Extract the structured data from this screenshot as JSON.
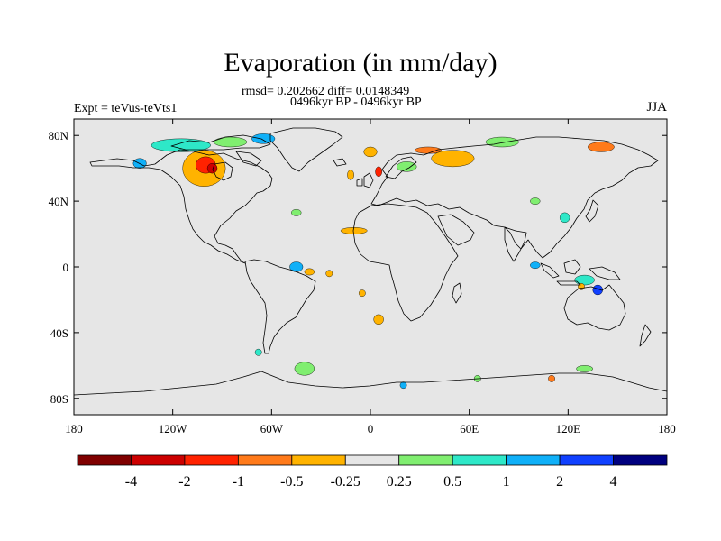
{
  "title": "Evaporation (in mm/day)",
  "stats_line": "rmsd= 0.202662 diff= 0.0148349",
  "period_line": "0496kyr BP - 0496kyr BP",
  "experiment": "Expt = teVus-teVts1",
  "season": "JJA",
  "map": {
    "projection": "cylindrical-equidistant",
    "background_color": "#e6e6e6",
    "lon_range": [
      -180,
      180
    ],
    "lat_range": [
      -90,
      90
    ],
    "x_ticks": [
      {
        "lon": -180,
        "label": "180"
      },
      {
        "lon": -120,
        "label": "120W"
      },
      {
        "lon": -60,
        "label": "60W"
      },
      {
        "lon": 0,
        "label": "0"
      },
      {
        "lon": 60,
        "label": "60E"
      },
      {
        "lon": 120,
        "label": "120E"
      },
      {
        "lon": 180,
        "label": "180"
      }
    ],
    "y_ticks": [
      {
        "lat": 80,
        "label": "80N"
      },
      {
        "lat": 40,
        "label": "40N"
      },
      {
        "lat": 0,
        "label": "0"
      },
      {
        "lat": -40,
        "label": "40S"
      },
      {
        "lat": -80,
        "label": "80S"
      }
    ]
  },
  "colorbar": {
    "colors": [
      "#7f0000",
      "#cc0000",
      "#ff2200",
      "#ff7a1a",
      "#ffb300",
      "#e6e6e6",
      "#80ee70",
      "#2ee8c8",
      "#10b0f8",
      "#1040ff",
      "#00007f"
    ],
    "labels": [
      "-4",
      "-2",
      "-1",
      "-0.5",
      "-0.25",
      "0.25",
      "0.5",
      "1",
      "2",
      "4"
    ]
  },
  "anomalies": [
    {
      "lon": -101,
      "lat": 60,
      "rx": 13,
      "ry": 11,
      "level": 4
    },
    {
      "lon": -100,
      "lat": 62,
      "rx": 6,
      "ry": 5,
      "level": 2
    },
    {
      "lon": -96,
      "lat": 60,
      "rx": 3,
      "ry": 3,
      "level": 1
    },
    {
      "lon": -140,
      "lat": 63,
      "rx": 4,
      "ry": 3,
      "level": 8
    },
    {
      "lon": -115,
      "lat": 74,
      "rx": 18,
      "ry": 4,
      "level": 7
    },
    {
      "lon": -85,
      "lat": 76,
      "rx": 10,
      "ry": 3,
      "level": 6
    },
    {
      "lon": -65,
      "lat": 78,
      "rx": 7,
      "ry": 3,
      "level": 8
    },
    {
      "lon": 0,
      "lat": 70,
      "rx": 4,
      "ry": 3,
      "level": 4
    },
    {
      "lon": -12,
      "lat": 56,
      "rx": 2,
      "ry": 3,
      "level": 4
    },
    {
      "lon": 22,
      "lat": 61,
      "rx": 6,
      "ry": 3,
      "level": 6
    },
    {
      "lon": 5,
      "lat": 58,
      "rx": 2,
      "ry": 3,
      "level": 2
    },
    {
      "lon": 50,
      "lat": 66,
      "rx": 13,
      "ry": 5,
      "level": 4
    },
    {
      "lon": 35,
      "lat": 71,
      "rx": 8,
      "ry": 2,
      "level": 3
    },
    {
      "lon": 80,
      "lat": 76,
      "rx": 10,
      "ry": 3,
      "level": 6
    },
    {
      "lon": 140,
      "lat": 73,
      "rx": 8,
      "ry": 3,
      "level": 3
    },
    {
      "lon": -45,
      "lat": 33,
      "rx": 3,
      "ry": 2,
      "level": 6
    },
    {
      "lon": -10,
      "lat": 22,
      "rx": 8,
      "ry": 2,
      "level": 4
    },
    {
      "lon": -45,
      "lat": 0,
      "rx": 4,
      "ry": 3,
      "level": 8
    },
    {
      "lon": -37,
      "lat": -3,
      "rx": 3,
      "ry": 2,
      "level": 4
    },
    {
      "lon": -25,
      "lat": -4,
      "rx": 2,
      "ry": 2,
      "level": 4
    },
    {
      "lon": -5,
      "lat": -16,
      "rx": 2,
      "ry": 2,
      "level": 4
    },
    {
      "lon": 5,
      "lat": -32,
      "rx": 3,
      "ry": 3,
      "level": 4
    },
    {
      "lon": -40,
      "lat": -62,
      "rx": 6,
      "ry": 4,
      "level": 6
    },
    {
      "lon": -68,
      "lat": -52,
      "rx": 2,
      "ry": 2,
      "level": 7
    },
    {
      "lon": 20,
      "lat": -72,
      "rx": 2,
      "ry": 2,
      "level": 8
    },
    {
      "lon": 100,
      "lat": 40,
      "rx": 3,
      "ry": 2,
      "level": 6
    },
    {
      "lon": 118,
      "lat": 30,
      "rx": 3,
      "ry": 3,
      "level": 7
    },
    {
      "lon": 100,
      "lat": 1,
      "rx": 3,
      "ry": 2,
      "level": 8
    },
    {
      "lon": 130,
      "lat": -8,
      "rx": 6,
      "ry": 3,
      "level": 7
    },
    {
      "lon": 128,
      "lat": -12,
      "rx": 2,
      "ry": 2,
      "level": 4
    },
    {
      "lon": 138,
      "lat": -14,
      "rx": 3,
      "ry": 3,
      "level": 9
    },
    {
      "lon": 130,
      "lat": -62,
      "rx": 5,
      "ry": 2,
      "level": 6
    },
    {
      "lon": 110,
      "lat": -68,
      "rx": 2,
      "ry": 2,
      "level": 3
    },
    {
      "lon": 65,
      "lat": -68,
      "rx": 2,
      "ry": 2,
      "level": 6
    }
  ]
}
